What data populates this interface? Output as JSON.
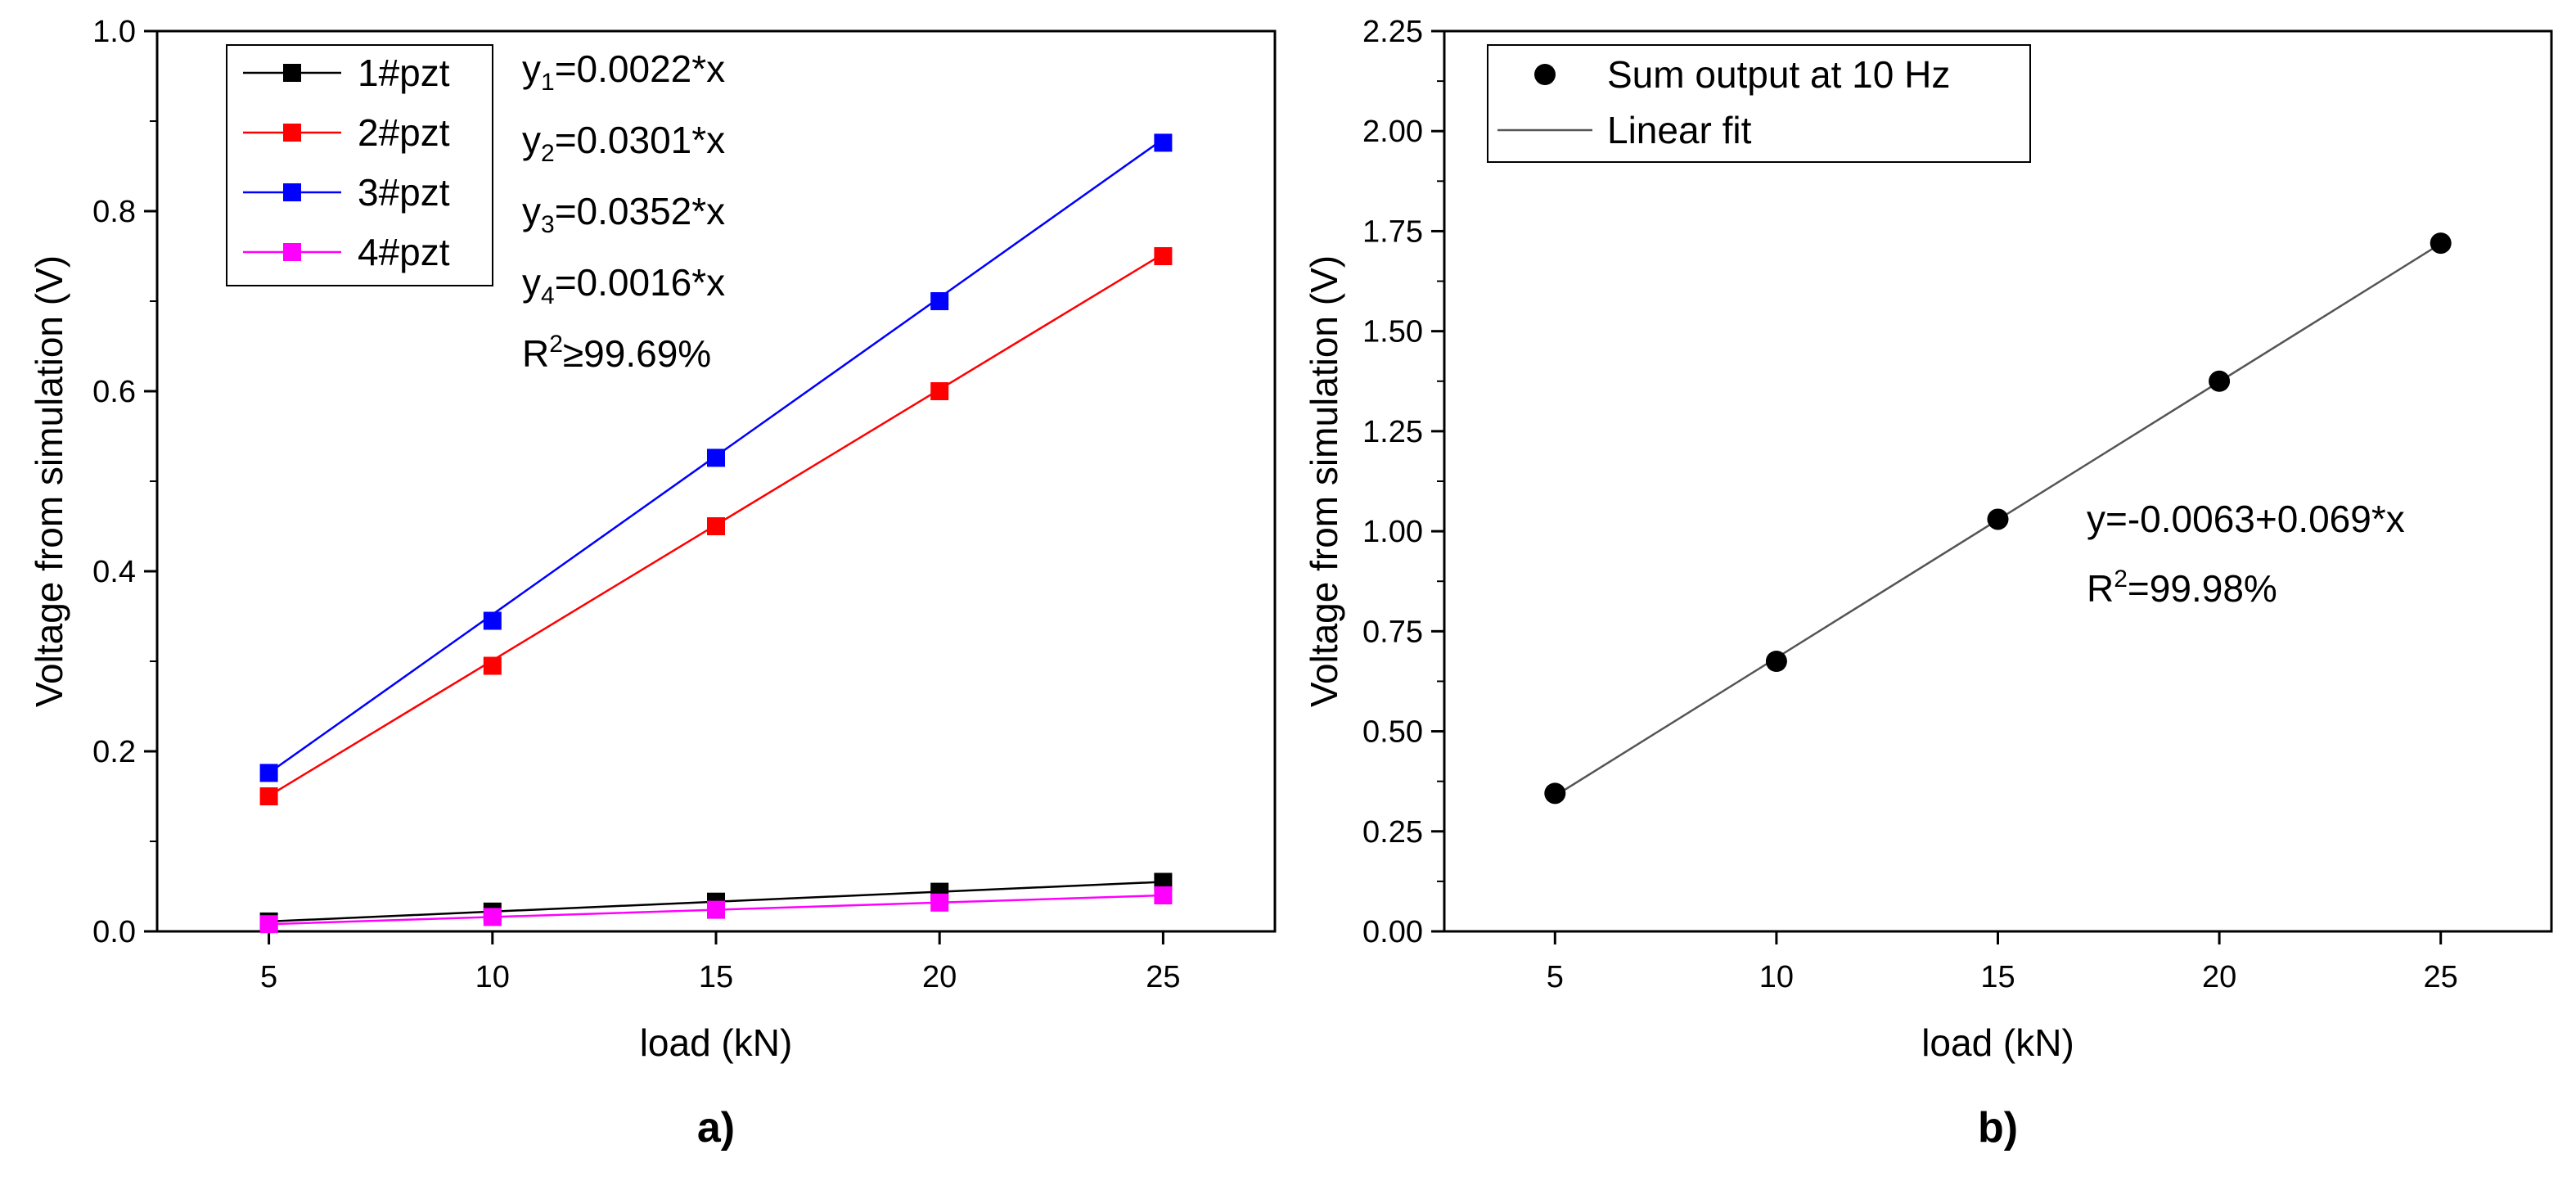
{
  "chart_data": [
    {
      "panel": "a)",
      "type": "line",
      "xlabel": "load (kN)",
      "ylabel": "Voltage from simulation (V)",
      "xlim": [
        2.5,
        27.5
      ],
      "ylim": [
        0.0,
        1.0
      ],
      "xticks": [
        "5",
        "10",
        "15",
        "20",
        "25"
      ],
      "yticks": [
        "0.0",
        "0.2",
        "0.4",
        "0.6",
        "0.8",
        "1.0"
      ],
      "x": [
        5,
        10,
        15,
        20,
        25
      ],
      "series": [
        {
          "name": "1#pzt",
          "color": "#000000",
          "values": [
            0.011,
            0.022,
            0.033,
            0.044,
            0.055
          ],
          "fit": [
            0.011,
            0.022,
            0.033,
            0.044,
            0.055
          ]
        },
        {
          "name": "2#pzt",
          "color": "#ff0000",
          "values": [
            0.15,
            0.295,
            0.45,
            0.6,
            0.75
          ],
          "fit": [
            0.1505,
            0.301,
            0.4515,
            0.602,
            0.7525
          ]
        },
        {
          "name": "3#pzt",
          "color": "#0000ff",
          "values": [
            0.176,
            0.345,
            0.526,
            0.7,
            0.876
          ],
          "fit": [
            0.176,
            0.352,
            0.528,
            0.704,
            0.88
          ]
        },
        {
          "name": "4#pzt",
          "color": "#ff00ff",
          "values": [
            0.008,
            0.016,
            0.024,
            0.032,
            0.04
          ],
          "fit": [
            0.008,
            0.016,
            0.024,
            0.032,
            0.04
          ]
        }
      ],
      "legend_position": "top-left",
      "annotations": [
        {
          "pre": "y",
          "sub": "1",
          "post": "=0.0022*x"
        },
        {
          "pre": "y",
          "sub": "2",
          "post": "=0.0301*x"
        },
        {
          "pre": "y",
          "sub": "3",
          "post": "=0.0352*x"
        },
        {
          "pre": "y",
          "sub": "4",
          "post": "=0.0016*x"
        },
        {
          "pre": "R",
          "sup": "2",
          "post": "≥99.69%"
        }
      ]
    },
    {
      "panel": "b)",
      "type": "scatter",
      "xlabel": "load (kN)",
      "ylabel": "Voltage from simulation (V)",
      "xlim": [
        2.5,
        27.5
      ],
      "ylim": [
        0.0,
        2.25
      ],
      "xticks": [
        "5",
        "10",
        "15",
        "20",
        "25"
      ],
      "yticks": [
        "0.00",
        "0.25",
        "0.50",
        "0.75",
        "1.00",
        "1.25",
        "1.50",
        "1.75",
        "2.00",
        "2.25"
      ],
      "x": [
        5,
        10,
        15,
        20,
        25
      ],
      "series": [
        {
          "name": "Sum output at 10 Hz",
          "color": "#000000",
          "values": [
            0.345,
            0.675,
            1.03,
            1.375,
            1.72
          ]
        }
      ],
      "fit": {
        "name": "Linear fit",
        "color": "#555555",
        "intercept": -0.0063,
        "slope": 0.069,
        "x_range": [
          5,
          25
        ]
      },
      "legend_position": "top-left",
      "annotations": [
        {
          "text": "y=-0.0063+0.069*x"
        },
        {
          "pre": "R",
          "sup": "2",
          "post": "=99.98%"
        }
      ]
    }
  ]
}
